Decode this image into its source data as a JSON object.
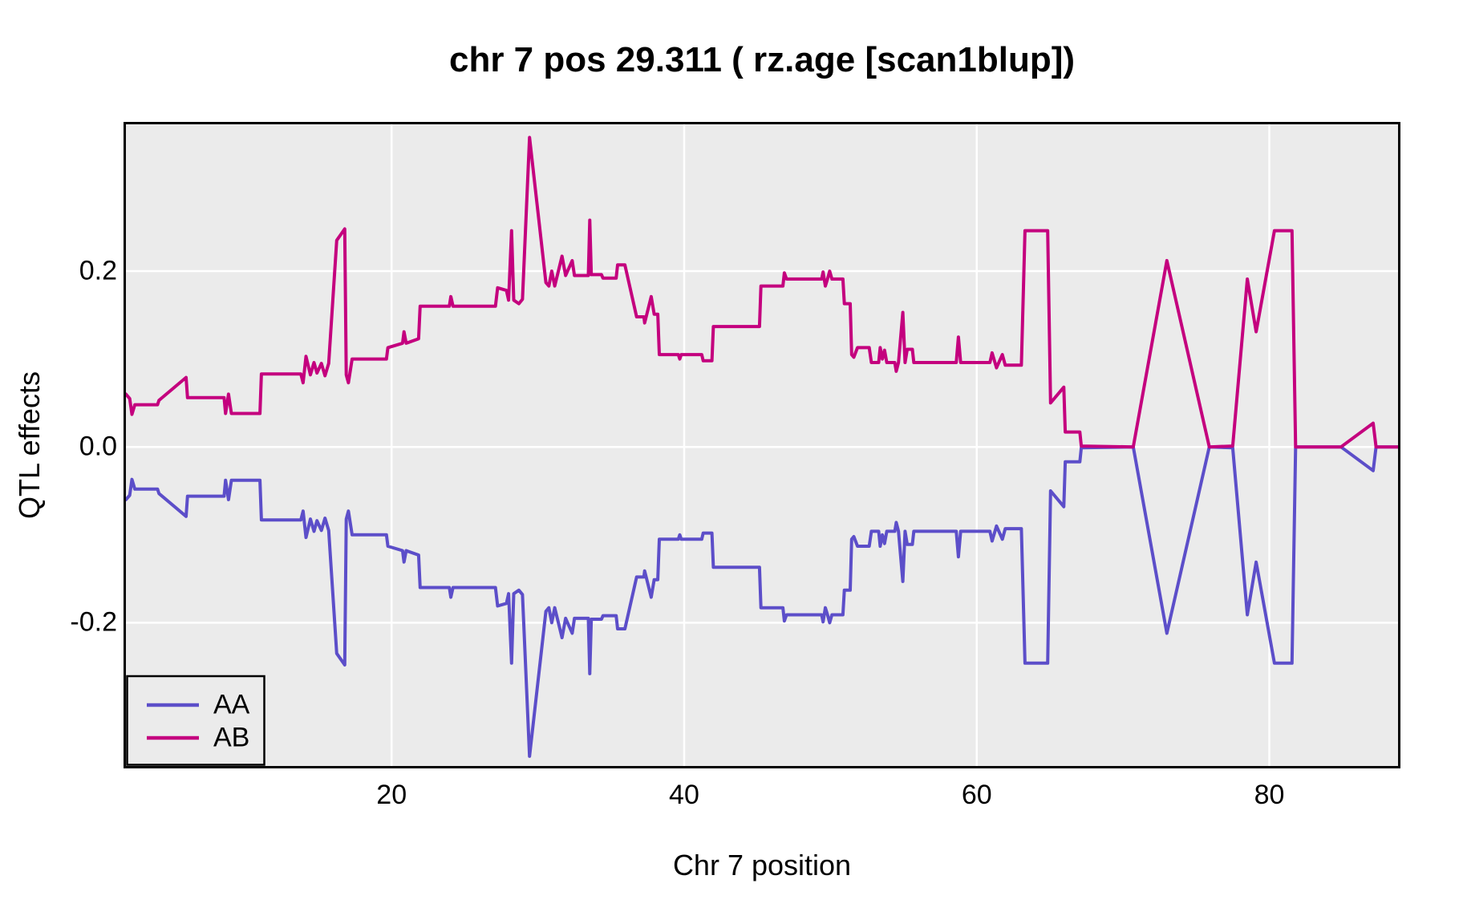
{
  "title": "chr 7 pos 29.311 ( rz.age  [scan1blup])",
  "x_axis": {
    "label": "Chr 7 position",
    "ticks": [
      20,
      40,
      60,
      80
    ],
    "tick_labels": [
      "20",
      "40",
      "60",
      "80"
    ]
  },
  "y_axis": {
    "label": "QTL effects",
    "ticks": [
      -0.2,
      0.0,
      0.2
    ],
    "tick_labels": [
      "-0.2",
      "0.0",
      "0.2"
    ]
  },
  "legend": {
    "position": "bottom-left",
    "entries": [
      {
        "label": "AA",
        "color": "#5C4EC9"
      },
      {
        "label": "AB",
        "color": "#C4007E"
      }
    ]
  },
  "style": {
    "panel_background": "#EBEBEB",
    "gridline_color": "#FFFFFF",
    "border_color": "#000000",
    "aa_color": "#5C4EC9",
    "ab_color": "#C4007E"
  },
  "chart_data": {
    "type": "line",
    "title": "chr 7 pos 29.311 ( rz.age  [scan1blup])",
    "xlabel": "Chr 7 position",
    "ylabel": "QTL effects",
    "xlim": [
      1.84,
      88.8
    ],
    "ylim": [
      -0.363,
      0.367
    ],
    "grid": true,
    "legend_position": "bottom-left",
    "series": [
      {
        "name": "AA",
        "color": "#5C4EC9",
        "points": [
          [
            1.84,
            -0.06
          ],
          [
            2.1,
            -0.055
          ],
          [
            2.25,
            -0.037
          ],
          [
            2.45,
            -0.048
          ],
          [
            4.0,
            -0.048
          ],
          [
            4.1,
            -0.053
          ],
          [
            5.95,
            -0.079
          ],
          [
            6.05,
            -0.056
          ],
          [
            8.55,
            -0.056
          ],
          [
            8.65,
            -0.038
          ],
          [
            8.85,
            -0.06
          ],
          [
            9.05,
            -0.038
          ],
          [
            11.0,
            -0.038
          ],
          [
            11.1,
            -0.083
          ],
          [
            13.8,
            -0.083
          ],
          [
            13.95,
            -0.073
          ],
          [
            14.15,
            -0.103
          ],
          [
            14.45,
            -0.082
          ],
          [
            14.7,
            -0.096
          ],
          [
            14.9,
            -0.084
          ],
          [
            15.2,
            -0.095
          ],
          [
            15.45,
            -0.081
          ],
          [
            15.7,
            -0.095
          ],
          [
            16.25,
            -0.235
          ],
          [
            16.8,
            -0.248
          ],
          [
            16.9,
            -0.082
          ],
          [
            17.05,
            -0.073
          ],
          [
            17.3,
            -0.1
          ],
          [
            19.65,
            -0.1
          ],
          [
            19.75,
            -0.113
          ],
          [
            20.75,
            -0.118
          ],
          [
            20.85,
            -0.131
          ],
          [
            21.0,
            -0.118
          ],
          [
            21.85,
            -0.123
          ],
          [
            21.95,
            -0.16
          ],
          [
            23.95,
            -0.16
          ],
          [
            24.05,
            -0.171
          ],
          [
            24.2,
            -0.16
          ],
          [
            27.1,
            -0.16
          ],
          [
            27.25,
            -0.181
          ],
          [
            27.85,
            -0.178
          ],
          [
            28.0,
            -0.167
          ],
          [
            28.2,
            -0.246
          ],
          [
            28.35,
            -0.167
          ],
          [
            28.7,
            -0.163
          ],
          [
            28.95,
            -0.168
          ],
          [
            29.43,
            -0.352
          ],
          [
            30.55,
            -0.187
          ],
          [
            30.75,
            -0.183
          ],
          [
            30.95,
            -0.2
          ],
          [
            31.15,
            -0.183
          ],
          [
            31.65,
            -0.217
          ],
          [
            31.9,
            -0.195
          ],
          [
            32.35,
            -0.212
          ],
          [
            32.5,
            -0.195
          ],
          [
            33.45,
            -0.195
          ],
          [
            33.55,
            -0.258
          ],
          [
            33.65,
            -0.196
          ],
          [
            34.35,
            -0.196
          ],
          [
            34.45,
            -0.192
          ],
          [
            35.35,
            -0.192
          ],
          [
            35.45,
            -0.207
          ],
          [
            35.95,
            -0.207
          ],
          [
            36.75,
            -0.148
          ],
          [
            37.25,
            -0.148
          ],
          [
            37.3,
            -0.141
          ],
          [
            37.75,
            -0.171
          ],
          [
            37.95,
            -0.151
          ],
          [
            38.2,
            -0.151
          ],
          [
            38.3,
            -0.105
          ],
          [
            39.6,
            -0.105
          ],
          [
            39.7,
            -0.1
          ],
          [
            39.8,
            -0.105
          ],
          [
            41.2,
            -0.105
          ],
          [
            41.3,
            -0.098
          ],
          [
            41.9,
            -0.098
          ],
          [
            42.0,
            -0.137
          ],
          [
            45.15,
            -0.137
          ],
          [
            45.25,
            -0.183
          ],
          [
            46.75,
            -0.183
          ],
          [
            46.85,
            -0.198
          ],
          [
            47.0,
            -0.191
          ],
          [
            49.4,
            -0.191
          ],
          [
            49.5,
            -0.199
          ],
          [
            49.65,
            -0.183
          ],
          [
            49.8,
            -0.191
          ],
          [
            49.95,
            -0.2
          ],
          [
            50.1,
            -0.191
          ],
          [
            50.85,
            -0.191
          ],
          [
            50.95,
            -0.163
          ],
          [
            51.35,
            -0.163
          ],
          [
            51.45,
            -0.105
          ],
          [
            51.6,
            -0.102
          ],
          [
            51.85,
            -0.113
          ],
          [
            52.65,
            -0.113
          ],
          [
            52.8,
            -0.096
          ],
          [
            53.3,
            -0.096
          ],
          [
            53.4,
            -0.113
          ],
          [
            53.55,
            -0.1
          ],
          [
            53.7,
            -0.11
          ],
          [
            53.85,
            -0.096
          ],
          [
            54.4,
            -0.096
          ],
          [
            54.5,
            -0.086
          ],
          [
            54.65,
            -0.096
          ],
          [
            54.95,
            -0.153
          ],
          [
            55.1,
            -0.096
          ],
          [
            55.25,
            -0.111
          ],
          [
            55.6,
            -0.111
          ],
          [
            55.7,
            -0.096
          ],
          [
            58.6,
            -0.096
          ],
          [
            58.75,
            -0.125
          ],
          [
            58.9,
            -0.096
          ],
          [
            60.9,
            -0.096
          ],
          [
            61.05,
            -0.107
          ],
          [
            61.35,
            -0.09
          ],
          [
            61.75,
            -0.105
          ],
          [
            61.95,
            -0.093
          ],
          [
            63.05,
            -0.093
          ],
          [
            63.3,
            -0.246
          ],
          [
            64.85,
            -0.246
          ],
          [
            65.05,
            -0.05
          ],
          [
            65.95,
            -0.068
          ],
          [
            66.05,
            -0.017
          ],
          [
            67.05,
            -0.017
          ],
          [
            67.15,
            -0.001
          ],
          [
            70.7,
            0.0
          ],
          [
            73.0,
            -0.212
          ],
          [
            75.9,
            0.0
          ],
          [
            77.5,
            -0.001
          ],
          [
            78.5,
            -0.191
          ],
          [
            79.1,
            -0.131
          ],
          [
            80.35,
            -0.246
          ],
          [
            81.55,
            -0.246
          ],
          [
            81.8,
            0.0
          ],
          [
            84.9,
            0.0
          ],
          [
            87.1,
            -0.027
          ],
          [
            87.3,
            0.0
          ],
          [
            88.8,
            0.0
          ]
        ]
      },
      {
        "name": "AB",
        "color": "#C4007E",
        "points": [
          [
            1.84,
            0.06
          ],
          [
            2.1,
            0.055
          ],
          [
            2.25,
            0.037
          ],
          [
            2.45,
            0.048
          ],
          [
            4.0,
            0.048
          ],
          [
            4.1,
            0.053
          ],
          [
            5.95,
            0.079
          ],
          [
            6.05,
            0.056
          ],
          [
            8.55,
            0.056
          ],
          [
            8.65,
            0.038
          ],
          [
            8.85,
            0.06
          ],
          [
            9.05,
            0.038
          ],
          [
            11.0,
            0.038
          ],
          [
            11.1,
            0.083
          ],
          [
            13.8,
            0.083
          ],
          [
            13.95,
            0.073
          ],
          [
            14.15,
            0.103
          ],
          [
            14.45,
            0.082
          ],
          [
            14.7,
            0.096
          ],
          [
            14.9,
            0.084
          ],
          [
            15.2,
            0.095
          ],
          [
            15.45,
            0.081
          ],
          [
            15.7,
            0.095
          ],
          [
            16.25,
            0.235
          ],
          [
            16.8,
            0.248
          ],
          [
            16.9,
            0.082
          ],
          [
            17.05,
            0.073
          ],
          [
            17.3,
            0.1
          ],
          [
            19.65,
            0.1
          ],
          [
            19.75,
            0.113
          ],
          [
            20.75,
            0.118
          ],
          [
            20.85,
            0.131
          ],
          [
            21.0,
            0.118
          ],
          [
            21.85,
            0.123
          ],
          [
            21.95,
            0.16
          ],
          [
            23.95,
            0.16
          ],
          [
            24.05,
            0.171
          ],
          [
            24.2,
            0.16
          ],
          [
            27.1,
            0.16
          ],
          [
            27.25,
            0.181
          ],
          [
            27.85,
            0.178
          ],
          [
            28.0,
            0.167
          ],
          [
            28.2,
            0.246
          ],
          [
            28.35,
            0.167
          ],
          [
            28.7,
            0.163
          ],
          [
            28.95,
            0.168
          ],
          [
            29.43,
            0.352
          ],
          [
            30.55,
            0.187
          ],
          [
            30.75,
            0.183
          ],
          [
            30.95,
            0.2
          ],
          [
            31.15,
            0.183
          ],
          [
            31.65,
            0.217
          ],
          [
            31.9,
            0.195
          ],
          [
            32.35,
            0.212
          ],
          [
            32.5,
            0.195
          ],
          [
            33.45,
            0.195
          ],
          [
            33.55,
            0.258
          ],
          [
            33.65,
            0.196
          ],
          [
            34.35,
            0.196
          ],
          [
            34.45,
            0.192
          ],
          [
            35.35,
            0.192
          ],
          [
            35.45,
            0.207
          ],
          [
            35.95,
            0.207
          ],
          [
            36.75,
            0.148
          ],
          [
            37.25,
            0.148
          ],
          [
            37.3,
            0.141
          ],
          [
            37.75,
            0.171
          ],
          [
            37.95,
            0.151
          ],
          [
            38.2,
            0.151
          ],
          [
            38.3,
            0.105
          ],
          [
            39.6,
            0.105
          ],
          [
            39.7,
            0.1
          ],
          [
            39.8,
            0.105
          ],
          [
            41.2,
            0.105
          ],
          [
            41.3,
            0.098
          ],
          [
            41.9,
            0.098
          ],
          [
            42.0,
            0.137
          ],
          [
            45.15,
            0.137
          ],
          [
            45.25,
            0.183
          ],
          [
            46.75,
            0.183
          ],
          [
            46.85,
            0.198
          ],
          [
            47.0,
            0.191
          ],
          [
            49.4,
            0.191
          ],
          [
            49.5,
            0.199
          ],
          [
            49.65,
            0.183
          ],
          [
            49.8,
            0.191
          ],
          [
            49.95,
            0.2
          ],
          [
            50.1,
            0.191
          ],
          [
            50.85,
            0.191
          ],
          [
            50.95,
            0.163
          ],
          [
            51.35,
            0.163
          ],
          [
            51.45,
            0.105
          ],
          [
            51.6,
            0.102
          ],
          [
            51.85,
            0.113
          ],
          [
            52.65,
            0.113
          ],
          [
            52.8,
            0.096
          ],
          [
            53.3,
            0.096
          ],
          [
            53.4,
            0.113
          ],
          [
            53.55,
            0.1
          ],
          [
            53.7,
            0.11
          ],
          [
            53.85,
            0.096
          ],
          [
            54.4,
            0.096
          ],
          [
            54.5,
            0.086
          ],
          [
            54.65,
            0.096
          ],
          [
            54.95,
            0.153
          ],
          [
            55.1,
            0.096
          ],
          [
            55.25,
            0.111
          ],
          [
            55.6,
            0.111
          ],
          [
            55.7,
            0.096
          ],
          [
            58.6,
            0.096
          ],
          [
            58.75,
            0.125
          ],
          [
            58.9,
            0.096
          ],
          [
            60.9,
            0.096
          ],
          [
            61.05,
            0.107
          ],
          [
            61.35,
            0.09
          ],
          [
            61.75,
            0.105
          ],
          [
            61.95,
            0.093
          ],
          [
            63.05,
            0.093
          ],
          [
            63.3,
            0.246
          ],
          [
            64.85,
            0.246
          ],
          [
            65.05,
            0.05
          ],
          [
            65.95,
            0.068
          ],
          [
            66.05,
            0.017
          ],
          [
            67.05,
            0.017
          ],
          [
            67.15,
            0.001
          ],
          [
            70.7,
            0.0
          ],
          [
            73.0,
            0.212
          ],
          [
            75.9,
            0.0
          ],
          [
            77.5,
            0.001
          ],
          [
            78.5,
            0.191
          ],
          [
            79.1,
            0.131
          ],
          [
            80.35,
            0.246
          ],
          [
            81.55,
            0.246
          ],
          [
            81.8,
            0.0
          ],
          [
            84.9,
            0.0
          ],
          [
            87.1,
            0.027
          ],
          [
            87.3,
            0.0
          ],
          [
            88.8,
            0.0
          ]
        ]
      }
    ]
  }
}
